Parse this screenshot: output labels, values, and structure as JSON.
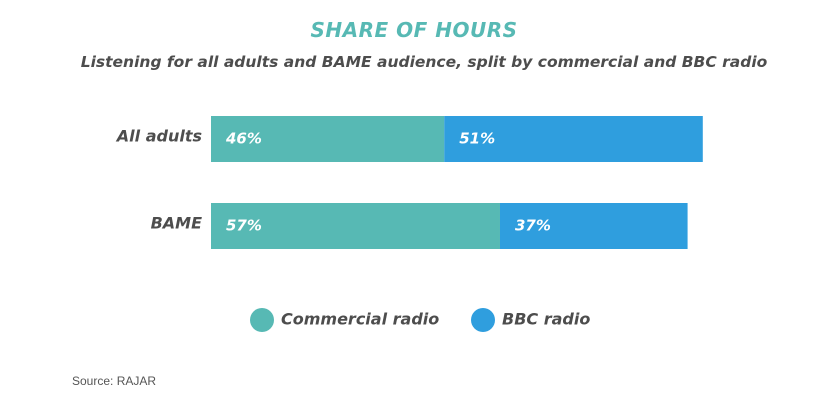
{
  "chart_data": {
    "type": "bar",
    "orientation": "horizontal",
    "stacked": true,
    "title": "SHARE OF HOURS",
    "subtitle": "Listening for all adults and BAME audience, split by commercial and BBC radio",
    "categories": [
      "All adults",
      "BAME"
    ],
    "series": [
      {
        "name": "Commercial radio",
        "values": [
          46,
          57
        ],
        "labels": [
          "46%",
          "57%"
        ],
        "color": "#57b9b4"
      },
      {
        "name": "BBC radio",
        "values": [
          51,
          37
        ],
        "labels": [
          "51%",
          "37%"
        ],
        "color": "#2f9ede"
      }
    ],
    "unit": "%",
    "xlim": [
      0,
      100
    ],
    "grid": false,
    "legend_position": "bottom",
    "source": "Source: RAJAR",
    "title_color": "#57b9b4"
  }
}
